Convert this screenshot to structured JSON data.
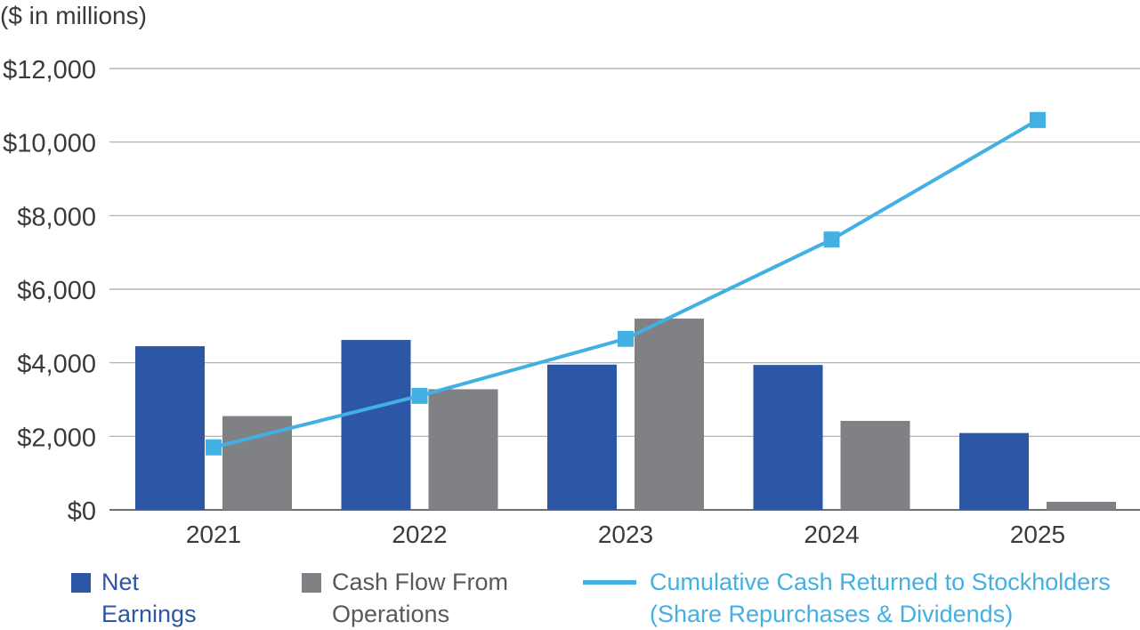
{
  "chart_data": {
    "type": "bar+line",
    "unit_label": "($ in millions)",
    "categories": [
      "2021",
      "2022",
      "2023",
      "2024",
      "2025"
    ],
    "ylim": [
      0,
      12000
    ],
    "yticks": [
      0,
      2000,
      4000,
      6000,
      8000,
      10000,
      12000
    ],
    "ytick_labels": [
      "$0",
      "$2,000",
      "$4,000",
      "$6,000",
      "$8,000",
      "$10,000",
      "$12,000"
    ],
    "grid": true,
    "series": [
      {
        "name": "Net Earnings",
        "kind": "bar",
        "color": "#2e56a6",
        "values": [
          4450,
          4620,
          3950,
          3940,
          2090
        ]
      },
      {
        "name": "Cash Flow From Operations",
        "kind": "bar",
        "color": "#808184",
        "values": [
          2550,
          3280,
          5200,
          2420,
          220
        ]
      },
      {
        "name": "Cumulative Cash Returned to Stockholders (Share Repurchases & Dividends)",
        "kind": "line",
        "color": "#42b0e2",
        "values": [
          1700,
          3100,
          4650,
          7350,
          10600
        ]
      }
    ]
  },
  "legend": {
    "net_earnings": "Net Earnings",
    "cash_flow": "Cash Flow From\nOperations",
    "cumulative": "Cumulative Cash Returned to Stockholders\n(Share Repurchases & Dividends)"
  }
}
